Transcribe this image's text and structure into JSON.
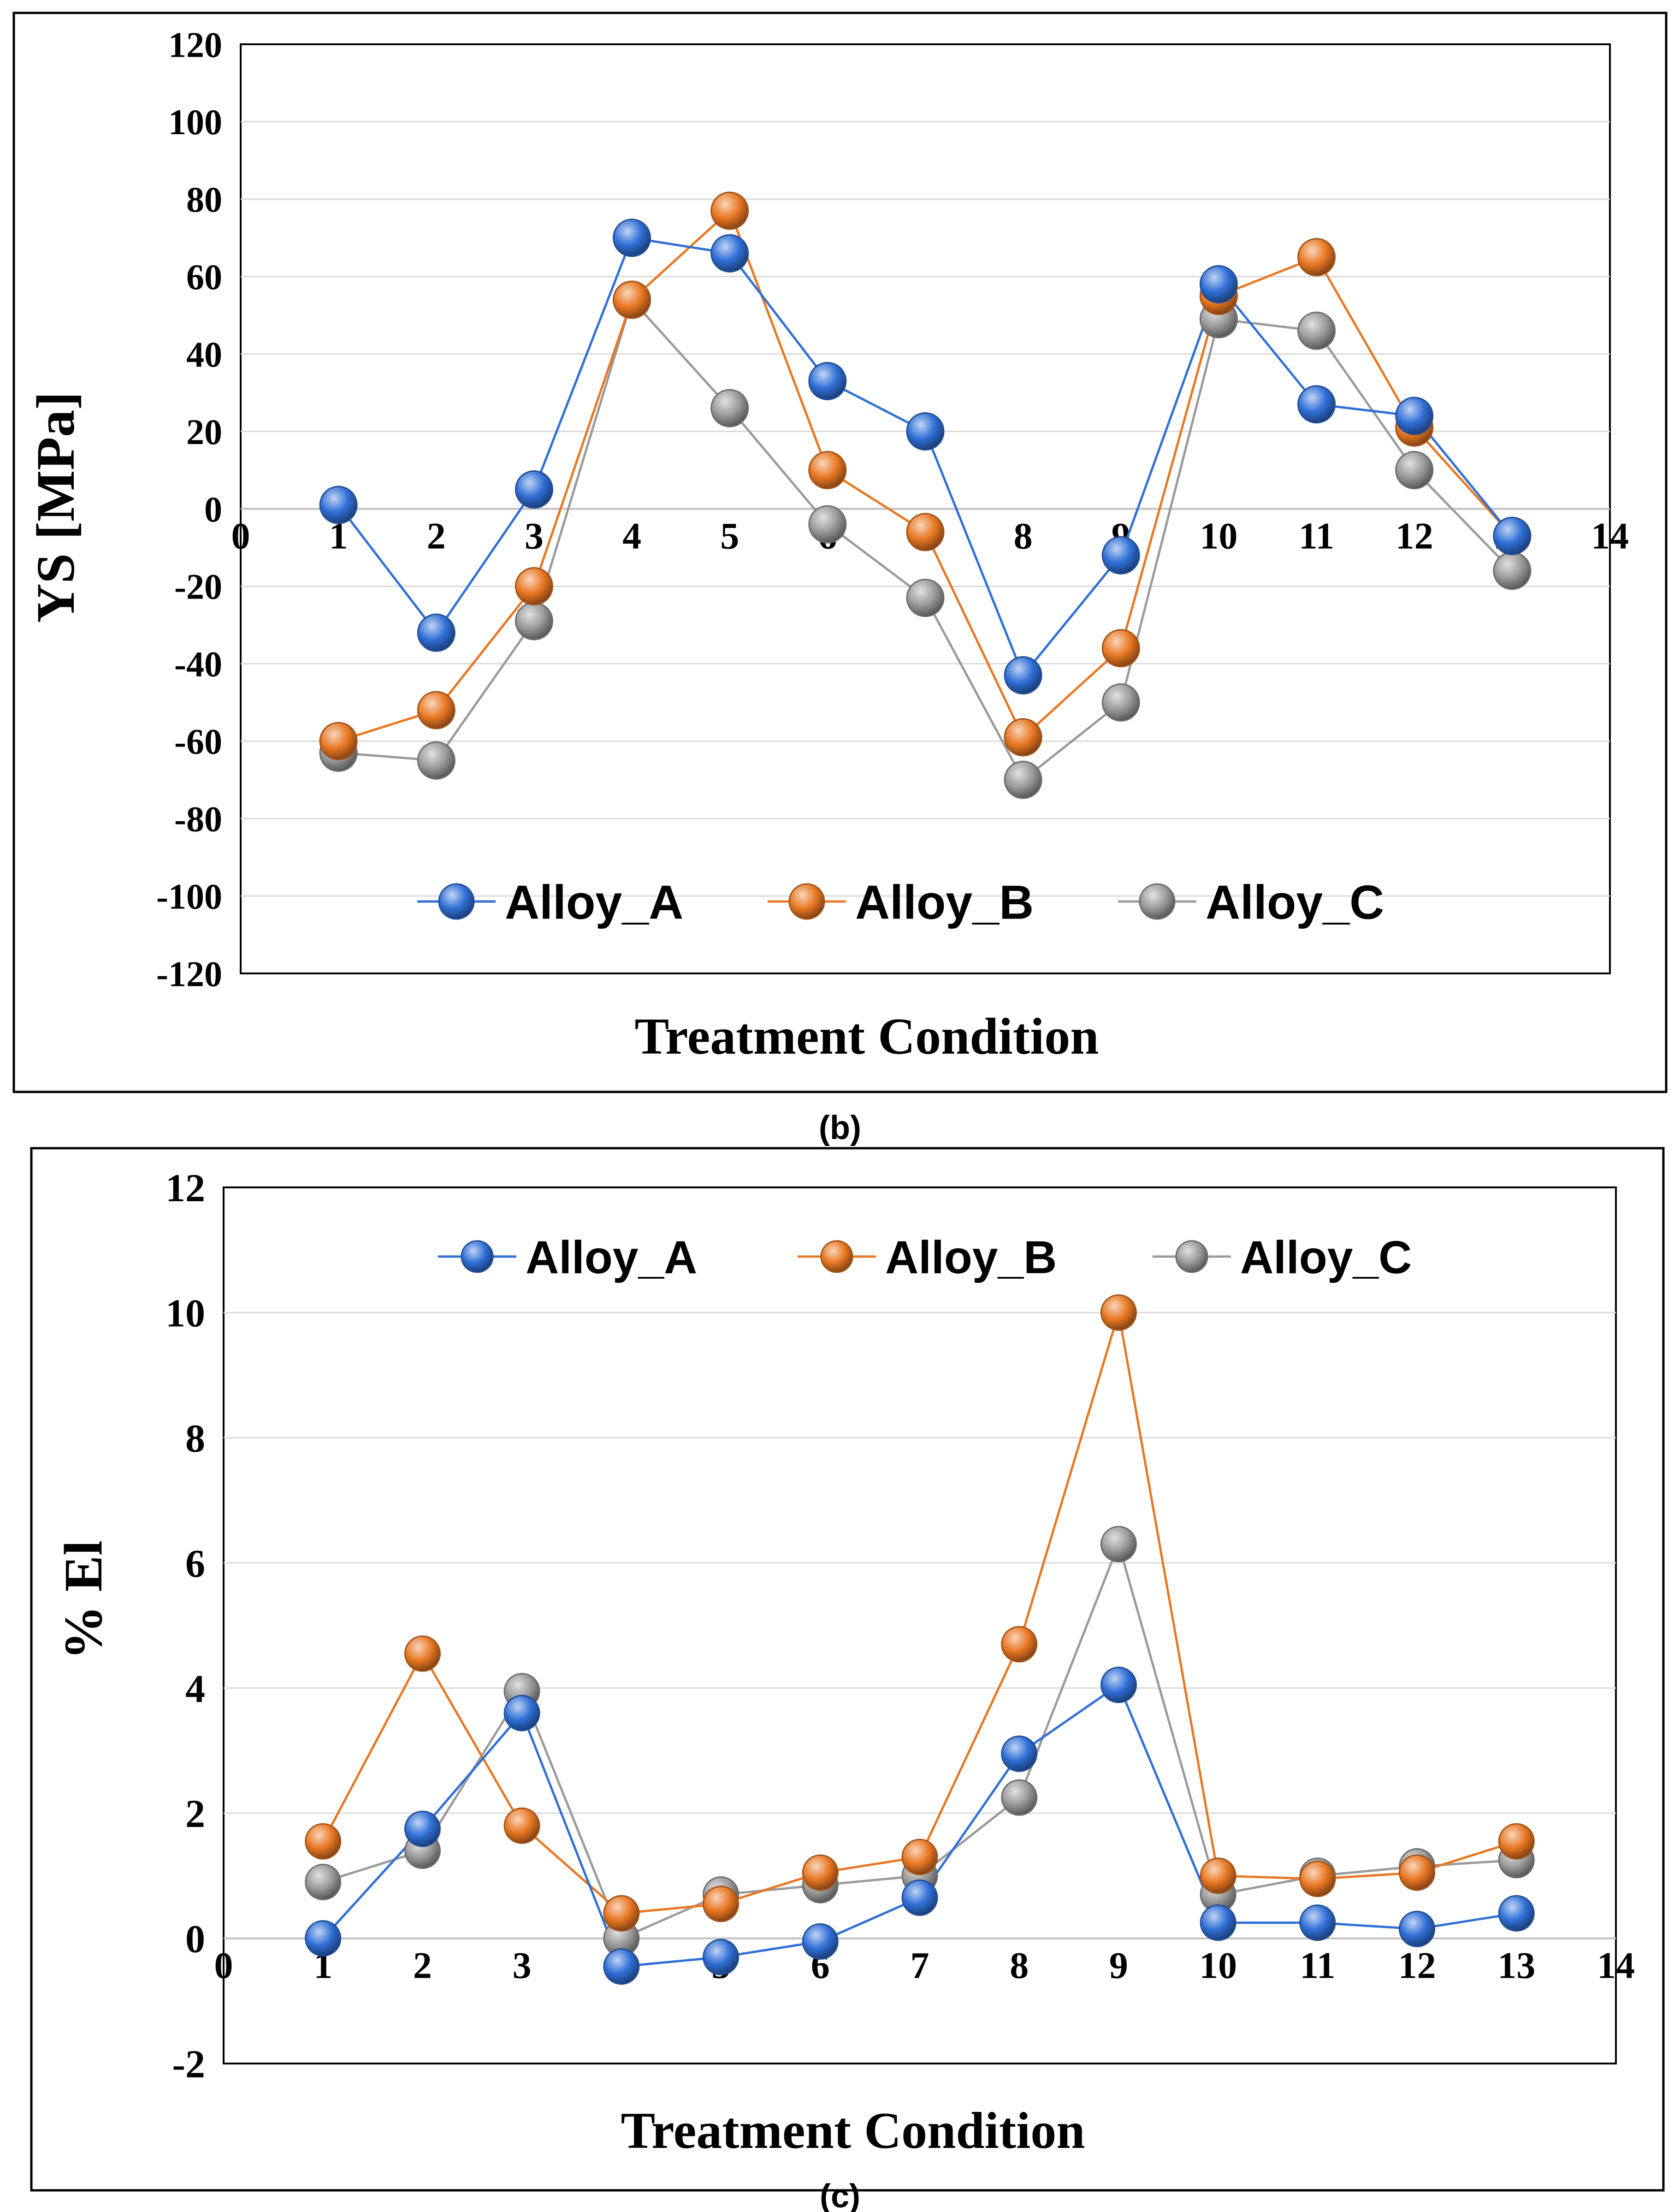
{
  "captions": {
    "b": "(b)",
    "c": "(c)"
  },
  "colors": {
    "Alloy_A": "#2f6fd6",
    "Alloy_B": "#e87722",
    "Alloy_C": "#9a9a9a",
    "grid": "#d9d9d9",
    "axis": "#000000"
  },
  "chart_data": [
    {
      "type": "line",
      "title": "",
      "xlabel": "Treatment Condition",
      "ylabel": "YS [MPa]",
      "xlim": [
        0,
        14
      ],
      "ylim": [
        -120,
        120
      ],
      "xticks": [
        "0",
        "1",
        "2",
        "3",
        "4",
        "5",
        "6",
        "7",
        "8",
        "9",
        "10",
        "11",
        "12",
        "13",
        "14"
      ],
      "yticks": [
        "120",
        "100",
        "80",
        "60",
        "40",
        "20",
        "0",
        "-20",
        "-40",
        "-60",
        "-80",
        "-100",
        "-120"
      ],
      "legend_position": "bottom-center",
      "x": [
        1,
        2,
        3,
        4,
        5,
        6,
        7,
        8,
        9,
        10,
        11,
        12,
        13
      ],
      "series": [
        {
          "name": "Alloy_A",
          "values": [
            1,
            -32,
            5,
            70,
            66,
            33,
            20,
            -43,
            -12,
            58,
            27,
            24,
            -7
          ]
        },
        {
          "name": "Alloy_B",
          "values": [
            -60,
            -52,
            -20,
            54,
            77,
            10,
            -6,
            -59,
            -36,
            55,
            65,
            21,
            -7
          ]
        },
        {
          "name": "Alloy_C",
          "values": [
            -63,
            -65,
            -29,
            54,
            26,
            -4,
            -23,
            -70,
            -50,
            49,
            46,
            10,
            -16
          ]
        }
      ]
    },
    {
      "type": "line",
      "title": "",
      "xlabel": "Treatment Condition",
      "ylabel": "% El",
      "xlim": [
        0,
        14
      ],
      "ylim": [
        -2,
        12
      ],
      "xticks": [
        "0",
        "1",
        "2",
        "3",
        "4",
        "5",
        "6",
        "7",
        "8",
        "9",
        "10",
        "11",
        "12",
        "13",
        "14"
      ],
      "yticks": [
        "12",
        "10",
        "8",
        "6",
        "4",
        "2",
        "0",
        "-2"
      ],
      "legend_position": "top-center",
      "x": [
        1,
        2,
        3,
        4,
        5,
        6,
        7,
        8,
        9,
        10,
        11,
        12,
        13
      ],
      "series": [
        {
          "name": "Alloy_A",
          "values": [
            0.0,
            1.75,
            3.6,
            -0.45,
            -0.3,
            -0.05,
            0.65,
            2.95,
            4.05,
            0.25,
            0.25,
            0.15,
            0.4
          ]
        },
        {
          "name": "Alloy_B",
          "values": [
            1.55,
            4.55,
            1.8,
            0.4,
            0.55,
            1.05,
            1.3,
            4.7,
            10.0,
            1.0,
            0.95,
            1.05,
            1.55
          ]
        },
        {
          "name": "Alloy_C",
          "values": [
            0.9,
            1.4,
            3.95,
            0.0,
            0.7,
            0.85,
            1.0,
            2.25,
            6.3,
            0.7,
            1.0,
            1.15,
            1.25
          ]
        }
      ]
    }
  ]
}
